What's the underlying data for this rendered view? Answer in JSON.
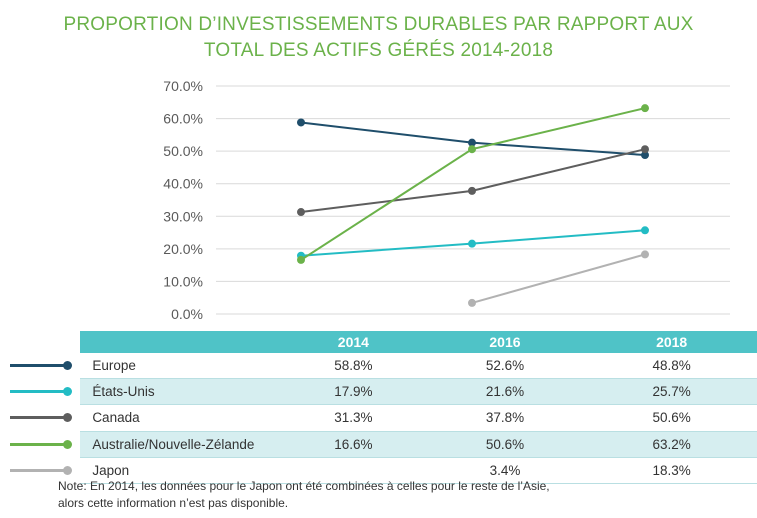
{
  "chart_data": {
    "type": "line",
    "title_lines": [
      "PROPORTION D’INVESTISSEMENTS DURABLES PAR RAPPORT AUX",
      "TOTAL DES ACTIFS GÉRÉS 2014-2018"
    ],
    "categories": [
      "2014",
      "2016",
      "2018"
    ],
    "y_ticks": [
      "0.0%",
      "10.0%",
      "20.0%",
      "30.0%",
      "40.0%",
      "50.0%",
      "60.0%",
      "70.0%"
    ],
    "ylim": [
      0,
      70
    ],
    "grid": true,
    "series": [
      {
        "name": "Europe",
        "color": "#1f4e6b",
        "values": [
          58.8,
          52.6,
          48.8
        ],
        "labels": [
          "58.8%",
          "52.6%",
          "48.8%"
        ]
      },
      {
        "name": "États-Unis",
        "color": "#23bcc4",
        "values": [
          17.9,
          21.6,
          25.7
        ],
        "labels": [
          "17.9%",
          "21.6%",
          "25.7%"
        ]
      },
      {
        "name": "Canada",
        "color": "#5e5e5e",
        "values": [
          31.3,
          37.8,
          50.6
        ],
        "labels": [
          "31.3%",
          "37.8%",
          "50.6%"
        ]
      },
      {
        "name": "Australie/Nouvelle-Zélande",
        "color": "#6bb24a",
        "values": [
          16.6,
          50.6,
          63.2
        ],
        "labels": [
          "16.6%",
          "50.6%",
          "63.2%"
        ]
      },
      {
        "name": "Japon",
        "color": "#b2b2b2",
        "values": [
          null,
          3.4,
          18.3
        ],
        "labels": [
          "",
          "3.4%",
          "18.3%"
        ]
      }
    ]
  },
  "note_lines": [
    "Note: En 2014, les données pour le Japon ont été combinées à celles pour le reste de l’Asie,",
    "alors cette information n’est pas disponible."
  ]
}
